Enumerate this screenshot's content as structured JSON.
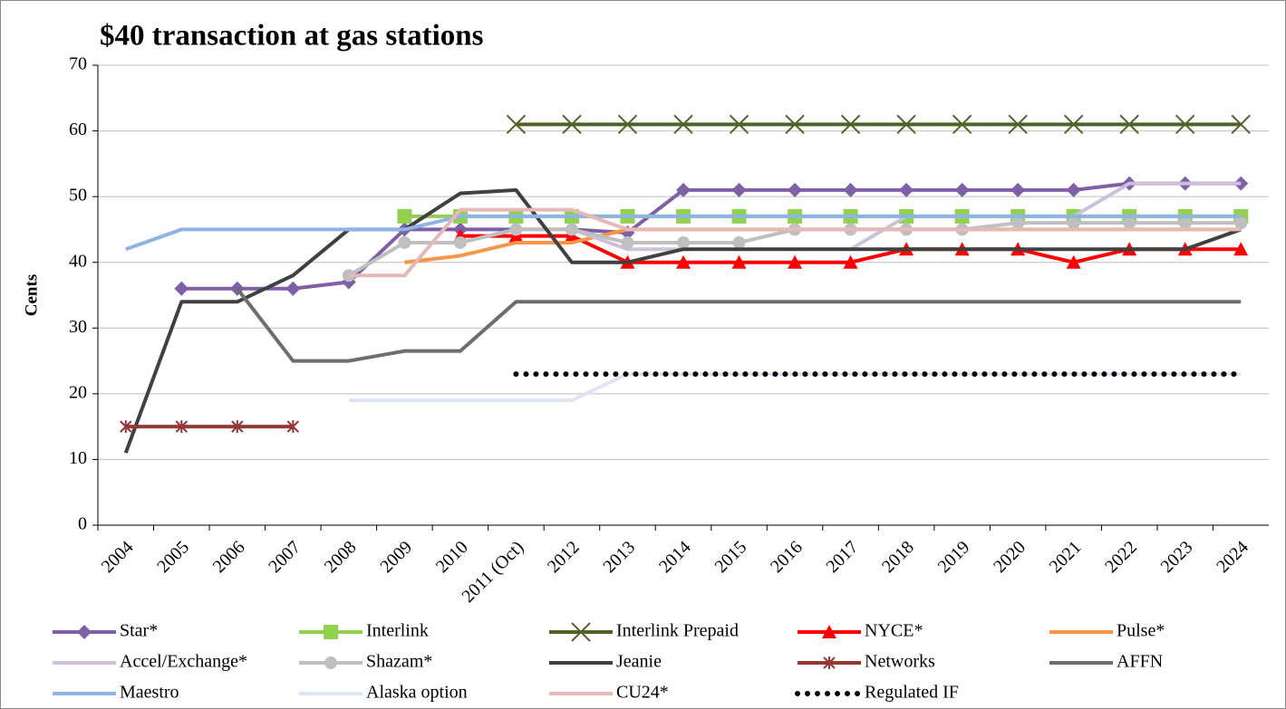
{
  "chart_data": {
    "type": "line",
    "title": "$40 transaction at gas stations",
    "y_label": "Cents",
    "categories": [
      "2004",
      "2005",
      "2006",
      "2007",
      "2008",
      "2009",
      "2010",
      "2011 (Oct)",
      "2012",
      "2013",
      "2014",
      "2015",
      "2016",
      "2017",
      "2018",
      "2019",
      "2020",
      "2021",
      "2022",
      "2023",
      "2024"
    ],
    "ylim": [
      0,
      70
    ],
    "yticks": [
      0,
      10,
      20,
      30,
      40,
      50,
      60,
      70
    ],
    "grid": true,
    "series": [
      {
        "name": "Star*",
        "color": "#7f5fa8",
        "marker": "diamond",
        "values": [
          null,
          36,
          36,
          36,
          37,
          45,
          45,
          45,
          45,
          44.5,
          51,
          51,
          51,
          51,
          51,
          51,
          51,
          51,
          52,
          52,
          52
        ]
      },
      {
        "name": "Interlink",
        "color": "#92d050",
        "marker": "square",
        "values": [
          null,
          null,
          null,
          null,
          null,
          47,
          47,
          47,
          47,
          47,
          47,
          47,
          47,
          47,
          47,
          47,
          47,
          47,
          47,
          47,
          47
        ]
      },
      {
        "name": "Interlink Prepaid",
        "color": "#4f6228",
        "marker": "x",
        "values": [
          null,
          null,
          null,
          null,
          null,
          null,
          null,
          61,
          61,
          61,
          61,
          61,
          61,
          61,
          61,
          61,
          61,
          61,
          61,
          61,
          61
        ]
      },
      {
        "name": "NYCE*",
        "color": "#ff0000",
        "marker": "triangle",
        "values": [
          null,
          null,
          null,
          null,
          null,
          null,
          44,
          44,
          44,
          40,
          40,
          40,
          40,
          40,
          42,
          42,
          42,
          40,
          42,
          42,
          42
        ]
      },
      {
        "name": "Pulse*",
        "color": "#f79646",
        "marker": "none",
        "values": [
          null,
          null,
          null,
          null,
          null,
          40,
          41,
          43,
          43,
          45,
          45,
          45,
          45,
          45,
          45,
          45,
          45,
          45,
          45,
          45,
          45
        ]
      },
      {
        "name": "Accel/Exchange*",
        "color": "#ccc0da",
        "marker": "none",
        "values": [
          null,
          null,
          null,
          null,
          null,
          43,
          43,
          45,
          45,
          42,
          42,
          42,
          42,
          42,
          47,
          47,
          47,
          47,
          52,
          52,
          52
        ]
      },
      {
        "name": "Shazam*",
        "color": "#bfbfbf",
        "marker": "circle",
        "values": [
          null,
          null,
          null,
          null,
          38,
          43,
          43,
          45,
          45,
          43,
          43,
          43,
          45,
          45,
          45,
          45,
          46,
          46,
          46,
          46,
          46
        ]
      },
      {
        "name": "Jeanie",
        "color": "#404040",
        "marker": "none",
        "values": [
          11,
          34,
          34,
          38,
          45,
          45,
          50.5,
          51,
          40,
          40,
          42,
          42,
          42,
          42,
          42,
          42,
          42,
          42,
          42,
          42,
          45
        ]
      },
      {
        "name": "Networks",
        "color": "#953735",
        "marker": "star",
        "values": [
          15,
          15,
          15,
          15,
          null,
          null,
          null,
          null,
          null,
          null,
          null,
          null,
          null,
          null,
          null,
          null,
          null,
          null,
          null,
          null,
          null
        ]
      },
      {
        "name": "AFFN",
        "color": "#6d6d6d",
        "marker": "none",
        "values": [
          null,
          null,
          36,
          25,
          25,
          26.5,
          26.5,
          34,
          34,
          34,
          34,
          34,
          34,
          34,
          34,
          34,
          34,
          34,
          34,
          34,
          34
        ]
      },
      {
        "name": "Maestro",
        "color": "#8db4e2",
        "marker": "none",
        "values": [
          42,
          45,
          45,
          45,
          45,
          45,
          47,
          47,
          47,
          47,
          47,
          47,
          47,
          47,
          47,
          47,
          47,
          47,
          47,
          47,
          47
        ]
      },
      {
        "name": "Alaska option",
        "color": "#dce6f2",
        "marker": "none",
        "values": [
          null,
          null,
          null,
          null,
          19,
          19,
          19,
          19,
          19,
          23,
          23,
          23,
          23,
          23,
          23,
          23,
          23,
          23,
          23,
          23,
          23
        ]
      },
      {
        "name": "CU24*",
        "color": "#e6b9b8",
        "marker": "none",
        "values": [
          null,
          null,
          null,
          null,
          38,
          38,
          48,
          48,
          48,
          45,
          45,
          45,
          45,
          45,
          45,
          45,
          45,
          45,
          45,
          45,
          45
        ]
      },
      {
        "name": "Regulated IF",
        "color": "#000000",
        "marker": "none",
        "dash": "dotted",
        "values": [
          null,
          null,
          null,
          null,
          null,
          null,
          null,
          23,
          23,
          23,
          23,
          23,
          23,
          23,
          23,
          23,
          23,
          23,
          23,
          23,
          23
        ]
      }
    ]
  }
}
